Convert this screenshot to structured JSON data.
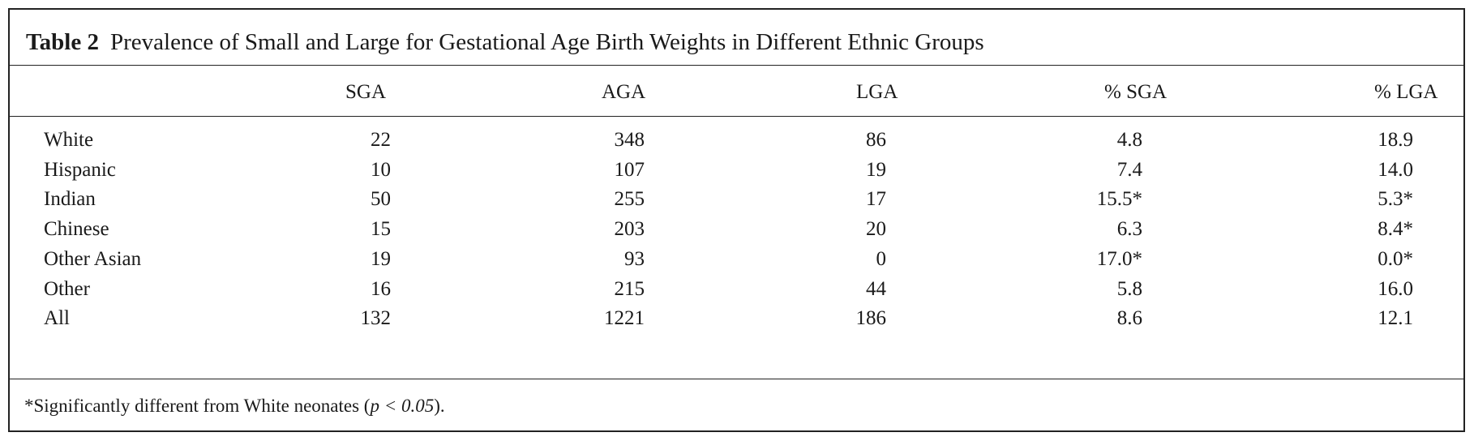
{
  "table": {
    "caption_label": "Table 2",
    "caption_text": "Prevalence of Small and Large for Gestational Age Birth Weights in Different Ethnic Groups",
    "columns": [
      "SGA",
      "AGA",
      "LGA",
      "% SGA",
      "% LGA"
    ],
    "rows": [
      {
        "group": "White",
        "sga": "22",
        "aga": "348",
        "lga": "86",
        "pct_sga": "4.8",
        "pct_lga": "18.9"
      },
      {
        "group": "Hispanic",
        "sga": "10",
        "aga": "107",
        "lga": "19",
        "pct_sga": "7.4",
        "pct_lga": "14.0"
      },
      {
        "group": "Indian",
        "sga": "50",
        "aga": "255",
        "lga": "17",
        "pct_sga": "15.5*",
        "pct_lga": "5.3*"
      },
      {
        "group": "Chinese",
        "sga": "15",
        "aga": "203",
        "lga": "20",
        "pct_sga": "6.3",
        "pct_lga": "8.4*"
      },
      {
        "group": "Other Asian",
        "sga": "19",
        "aga": "93",
        "lga": "0",
        "pct_sga": "17.0*",
        "pct_lga": "0.0*"
      },
      {
        "group": "Other",
        "sga": "16",
        "aga": "215",
        "lga": "44",
        "pct_sga": "5.8",
        "pct_lga": "16.0"
      },
      {
        "group": "All",
        "sga": "132",
        "aga": "1221",
        "lga": "186",
        "pct_sga": "8.6",
        "pct_lga": "12.1"
      }
    ],
    "footnote_text": "*Significantly different from White neonates (",
    "footnote_p": "p < 0.05",
    "footnote_end": ")."
  }
}
